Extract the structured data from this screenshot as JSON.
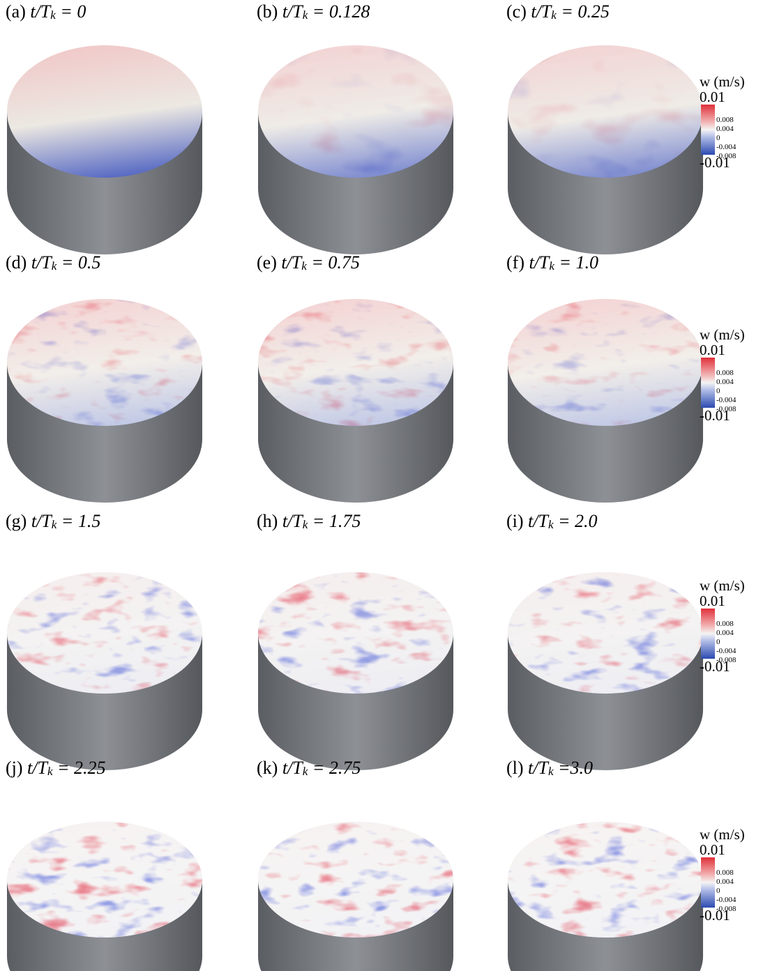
{
  "panels": [
    {
      "tag": "(a)",
      "expr": "t/T",
      "sub": "k",
      "rhs": " = 0"
    },
    {
      "tag": "(b)",
      "expr": "t/T",
      "sub": "k",
      "rhs": " = 0.128"
    },
    {
      "tag": "(c)",
      "expr": "t/T",
      "sub": "k",
      "rhs": " = 0.25"
    },
    {
      "tag": "(d)",
      "expr": "t/T",
      "sub": "k",
      "rhs": " = 0.5"
    },
    {
      "tag": "(e)",
      "expr": "t/T",
      "sub": "k",
      "rhs": " = 0.75"
    },
    {
      "tag": "(f)",
      "expr": "t/T",
      "sub": "k",
      "rhs": " = 1.0"
    },
    {
      "tag": "(g)",
      "expr": "t/T",
      "sub": "k",
      "rhs": " = 1.5"
    },
    {
      "tag": "(h)",
      "expr": "t/T",
      "sub": "k",
      "rhs": " = 1.75"
    },
    {
      "tag": "(i)",
      "expr": "t/T",
      "sub": "k",
      "rhs": " = 2.0"
    },
    {
      "tag": "(j)",
      "expr": "t/T",
      "sub": "k",
      "rhs": " = 2.25"
    },
    {
      "tag": "(k)",
      "expr": "t/T",
      "sub": "k",
      "rhs": " = 2.75"
    },
    {
      "tag": "(l)",
      "expr": "t/T",
      "sub": "k",
      "rhs": " =3.0"
    }
  ],
  "colorbar": {
    "title": "w (m/s)",
    "max": "0.01",
    "ticks": [
      "0.008",
      "0.004",
      "0",
      "-0.004",
      "-0.008"
    ],
    "min": "-0.01"
  }
}
